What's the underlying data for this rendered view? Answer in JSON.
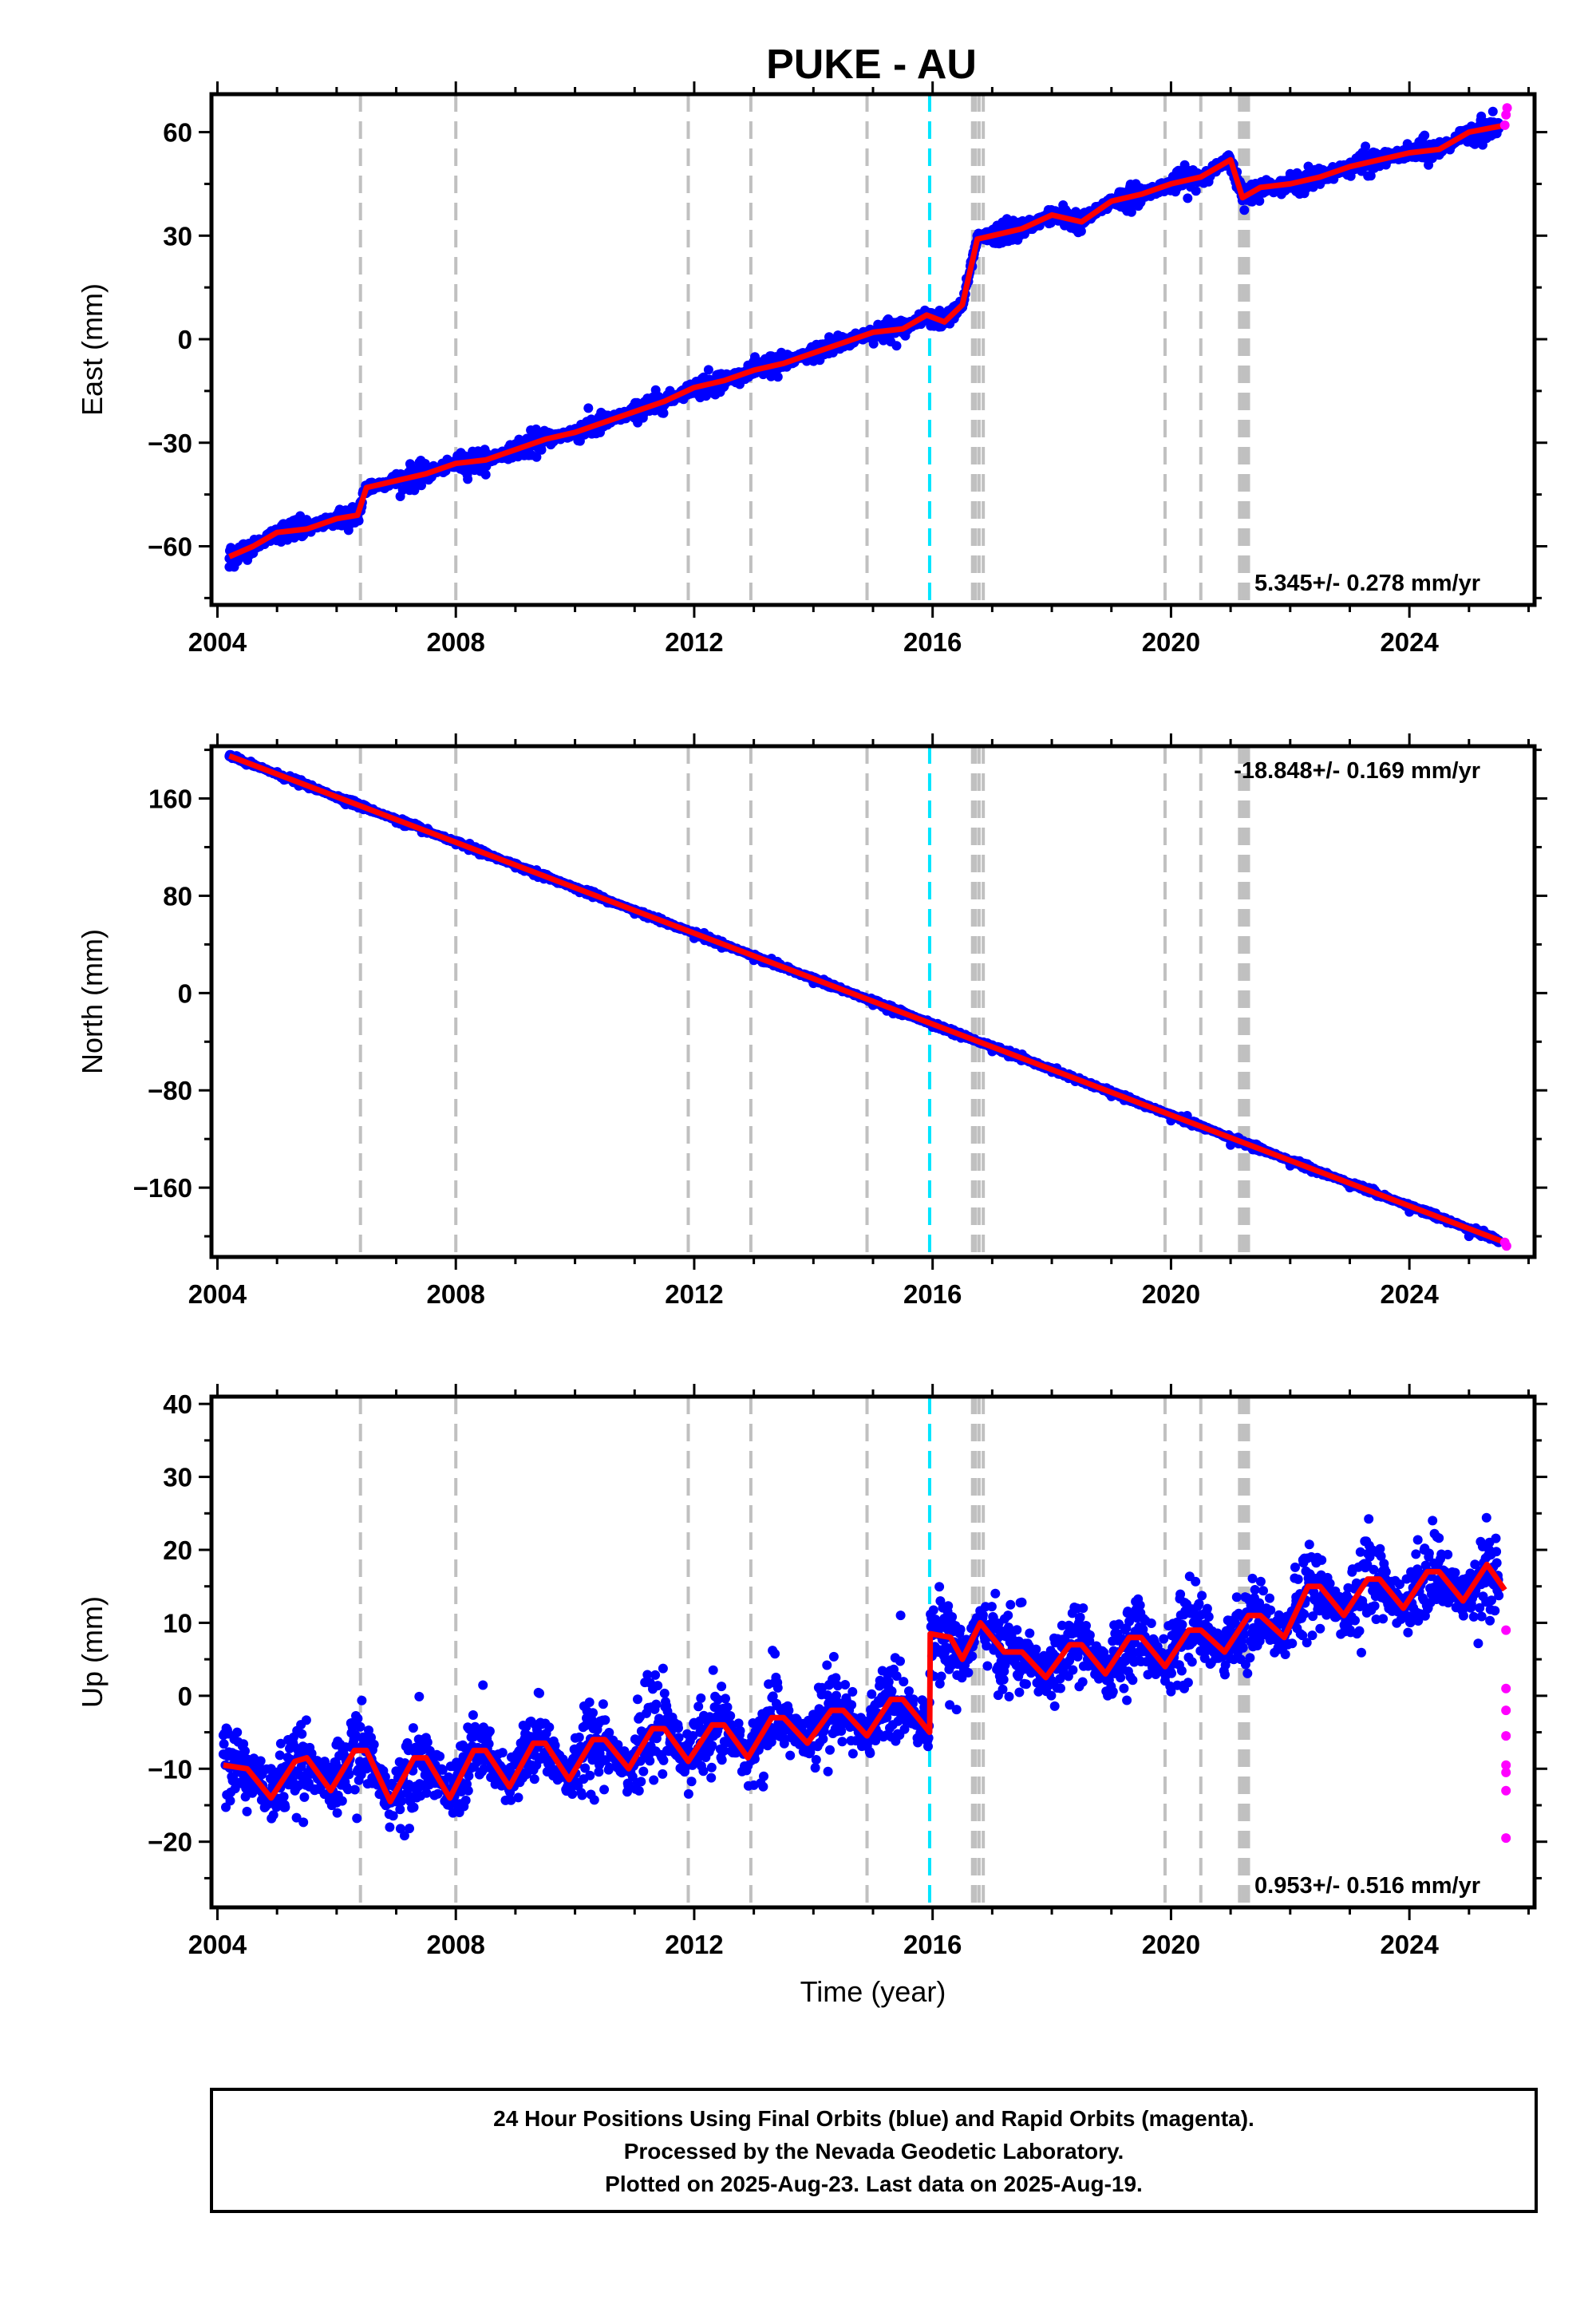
{
  "title": "PUKE - AU",
  "colors": {
    "final_orbits": "#0000ff",
    "rapid_orbits": "#ff00ff",
    "model": "#ff0000",
    "event_line": "#c0c0c0",
    "highlight_event": "#00e5ff"
  },
  "footer": {
    "line1": "24 Hour Positions Using Final Orbits (blue) and Rapid Orbits (magenta).",
    "line2": "Processed by the Nevada Geodetic Laboratory.",
    "line3": "Plotted on 2025-Aug-23. Last data on 2025-Aug-19."
  },
  "chart_data": [
    {
      "type": "scatter",
      "component": "east",
      "title": "",
      "xlabel": "",
      "ylabel": "East (mm)",
      "xlim": [
        2003.9,
        2026.1
      ],
      "ylim": [
        -77,
        71
      ],
      "x_ticks": [
        2004,
        2008,
        2012,
        2016,
        2020,
        2024
      ],
      "y_ticks": [
        -60,
        -30,
        0,
        30,
        60
      ],
      "rate_label": "5.345+/- 0.278 mm/yr",
      "rate_position": "bottom-right",
      "event_lines": [
        2006.4,
        2008.0,
        2011.9,
        2012.95,
        2014.9,
        2016.67,
        2016.72,
        2016.78,
        2016.85,
        2019.9,
        2020.5,
        2021.15,
        2021.2,
        2021.25,
        2021.3
      ],
      "highlight_event": 2015.95,
      "series": [
        {
          "name": "Final Orbits",
          "style": "points",
          "x": [
            2004.2,
            2004.6,
            2005.0,
            2005.5,
            2006.0,
            2006.35,
            2006.5,
            2007.0,
            2007.5,
            2008.0,
            2008.5,
            2009.0,
            2009.5,
            2010.0,
            2010.5,
            2011.0,
            2011.5,
            2012.0,
            2012.5,
            2013.0,
            2013.5,
            2014.0,
            2014.5,
            2015.0,
            2015.5,
            2015.9,
            2016.2,
            2016.5,
            2016.75,
            2017.0,
            2017.5,
            2018.0,
            2018.5,
            2019.0,
            2019.5,
            2020.0,
            2020.5,
            2021.0,
            2021.2,
            2021.5,
            2022.0,
            2022.5,
            2023.0,
            2023.5,
            2024.0,
            2024.5,
            2025.0,
            2025.5
          ],
          "y": [
            -66,
            -62,
            -57,
            -55,
            -51,
            -50,
            -43,
            -40,
            -39,
            -36,
            -35,
            -33,
            -29,
            -27,
            -24,
            -21,
            -18,
            -14,
            -12,
            -10,
            -7,
            -4,
            -1,
            2,
            3,
            7,
            5,
            10,
            29,
            30,
            32,
            35,
            34,
            40,
            42,
            45,
            47,
            51,
            42,
            44,
            45,
            47,
            50,
            52,
            54,
            55,
            60,
            61
          ]
        },
        {
          "name": "Rapid Orbits",
          "style": "points",
          "x": [
            2025.6,
            2025.62,
            2025.64
          ],
          "y": [
            62,
            65,
            67
          ]
        },
        {
          "name": "Model",
          "style": "line",
          "x": [
            2004.2,
            2004.6,
            2005.0,
            2005.5,
            2006.0,
            2006.35,
            2006.5,
            2007.0,
            2007.5,
            2008.0,
            2008.5,
            2009.0,
            2009.5,
            2010.0,
            2010.5,
            2011.0,
            2011.5,
            2012.0,
            2012.5,
            2013.0,
            2013.5,
            2014.0,
            2014.5,
            2015.0,
            2015.5,
            2015.9,
            2016.2,
            2016.5,
            2016.75,
            2017.0,
            2017.5,
            2018.0,
            2018.5,
            2019.0,
            2019.5,
            2020.0,
            2020.5,
            2021.0,
            2021.2,
            2021.5,
            2022.0,
            2022.5,
            2023.0,
            2023.5,
            2024.0,
            2024.5,
            2025.0,
            2025.6
          ],
          "y": [
            -63,
            -60,
            -56,
            -55,
            -52,
            -51,
            -43,
            -41,
            -39,
            -36,
            -35,
            -32,
            -29,
            -27,
            -24,
            -21,
            -18,
            -14,
            -12,
            -9,
            -7,
            -4,
            -1,
            2,
            3,
            7,
            5,
            10,
            29,
            30,
            32,
            36,
            34,
            40,
            42,
            45,
            47,
            52,
            41,
            44,
            45,
            47,
            50,
            52,
            54,
            55,
            60,
            62
          ]
        }
      ]
    },
    {
      "type": "scatter",
      "component": "north",
      "title": "",
      "xlabel": "",
      "ylabel": "North (mm)",
      "xlim": [
        2003.9,
        2026.1
      ],
      "ylim": [
        -217,
        203
      ],
      "x_ticks": [
        2004,
        2008,
        2012,
        2016,
        2020,
        2024
      ],
      "y_ticks": [
        -160,
        -80,
        0,
        80,
        160
      ],
      "rate_label": "-18.848+/- 0.169 mm/yr",
      "rate_position": "top-right",
      "event_lines": [
        2006.4,
        2008.0,
        2011.9,
        2012.95,
        2014.9,
        2016.67,
        2016.72,
        2016.78,
        2016.85,
        2019.9,
        2020.5,
        2021.15,
        2021.2,
        2021.25,
        2021.3
      ],
      "highlight_event": 2015.95,
      "series": [
        {
          "name": "Final Orbits",
          "style": "points",
          "x": [
            2004.2,
            2005.0,
            2006.0,
            2007.0,
            2008.0,
            2009.0,
            2010.0,
            2011.0,
            2012.0,
            2013.0,
            2014.0,
            2015.0,
            2016.0,
            2017.0,
            2018.0,
            2019.0,
            2020.0,
            2021.0,
            2022.0,
            2023.0,
            2024.0,
            2025.0,
            2025.5
          ],
          "y": [
            195,
            180,
            160,
            140,
            122,
            103,
            85,
            65,
            45,
            27,
            8,
            -10,
            -28,
            -48,
            -65,
            -85,
            -105,
            -125,
            -142,
            -160,
            -180,
            -200,
            -205
          ]
        },
        {
          "name": "Rapid Orbits",
          "style": "points",
          "x": [
            2025.6,
            2025.63
          ],
          "y": [
            -205,
            -208
          ]
        },
        {
          "name": "Model",
          "style": "line",
          "x": [
            2004.2,
            2025.6
          ],
          "y": [
            195,
            -205
          ]
        }
      ]
    },
    {
      "type": "scatter",
      "component": "up",
      "title": "",
      "xlabel": "Time (year)",
      "ylabel": "Up (mm)",
      "xlim": [
        2003.9,
        2026.1
      ],
      "ylim": [
        -29,
        41
      ],
      "x_ticks": [
        2004,
        2008,
        2012,
        2016,
        2020,
        2024
      ],
      "y_ticks": [
        -20,
        -10,
        0,
        10,
        20,
        30,
        40
      ],
      "rate_label": "0.953+/- 0.516 mm/yr",
      "rate_position": "bottom-right",
      "event_lines": [
        2006.4,
        2008.0,
        2011.9,
        2012.95,
        2014.9,
        2016.67,
        2016.72,
        2016.78,
        2016.85,
        2019.9,
        2020.5,
        2021.15,
        2021.2,
        2021.25,
        2021.3
      ],
      "highlight_event": 2015.95,
      "series": [
        {
          "name": "Final Orbits",
          "style": "points",
          "x": [
            2004.1,
            2004.4,
            2004.9,
            2005.3,
            2005.8,
            2006.1,
            2006.6,
            2007.1,
            2007.6,
            2008.1,
            2008.6,
            2009.1,
            2009.6,
            2010.1,
            2010.6,
            2011.1,
            2011.6,
            2012.1,
            2012.6,
            2013.1,
            2013.6,
            2014.1,
            2014.6,
            2015.1,
            2015.6,
            2016.1,
            2016.6,
            2017.1,
            2017.6,
            2018.1,
            2018.6,
            2019.1,
            2019.6,
            2020.1,
            2020.6,
            2021.1,
            2021.6,
            2022.1,
            2022.6,
            2023.1,
            2023.6,
            2024.1,
            2024.6,
            2025.1,
            2025.5
          ],
          "y": [
            -8,
            -12,
            -10,
            -13,
            -9,
            -10,
            -12,
            -10,
            -11,
            -9,
            -10,
            -8,
            -9,
            -7,
            -8,
            -6,
            -6,
            -5,
            -5,
            -4,
            -4,
            -3,
            -2,
            -1,
            -2,
            6,
            5,
            4,
            4,
            5,
            5,
            6,
            6,
            8,
            8,
            11,
            12,
            13,
            14,
            15,
            16,
            16,
            17,
            18,
            15
          ]
        },
        {
          "name": "Rapid Orbits",
          "style": "points",
          "x": [
            2025.62,
            2025.62,
            2025.62,
            2025.62,
            2025.62,
            2025.62,
            2025.62,
            2025.62
          ],
          "y": [
            9,
            1,
            -2,
            -5.5,
            -9.5,
            -10.5,
            -13,
            -19.5
          ]
        },
        {
          "name": "Model",
          "style": "line",
          "x": [
            2004.1,
            2004.5,
            2004.9,
            2005.3,
            2005.5,
            2005.9,
            2006.3,
            2006.5,
            2006.9,
            2007.3,
            2007.5,
            2007.9,
            2008.3,
            2008.5,
            2008.9,
            2009.3,
            2009.5,
            2009.9,
            2010.3,
            2010.5,
            2010.9,
            2011.3,
            2011.5,
            2011.9,
            2012.3,
            2012.5,
            2012.9,
            2013.3,
            2013.5,
            2013.9,
            2014.3,
            2014.5,
            2014.9,
            2015.3,
            2015.5,
            2015.95,
            2015.96,
            2016.3,
            2016.5,
            2016.8,
            2017.2,
            2017.5,
            2017.9,
            2018.3,
            2018.5,
            2018.9,
            2019.3,
            2019.5,
            2019.9,
            2020.3,
            2020.5,
            2020.9,
            2021.3,
            2021.5,
            2021.9,
            2022.3,
            2022.5,
            2022.9,
            2023.3,
            2023.5,
            2023.9,
            2024.3,
            2024.5,
            2024.9,
            2025.3,
            2025.6
          ],
          "y": [
            -9.5,
            -10,
            -14,
            -9,
            -8.5,
            -13,
            -7.5,
            -7.5,
            -14.5,
            -8.5,
            -8.5,
            -14,
            -7.5,
            -7.5,
            -12.5,
            -6.5,
            -6.5,
            -11.5,
            -6,
            -6,
            -10,
            -4.5,
            -4.5,
            -9,
            -4,
            -4,
            -8.5,
            -3,
            -3,
            -6.5,
            -2,
            -2,
            -5.5,
            -0.5,
            -0.5,
            -5,
            8.5,
            8,
            5,
            10,
            6,
            6,
            2.5,
            7,
            7,
            3,
            8,
            8,
            4,
            9,
            9,
            6,
            11,
            11,
            8,
            15,
            15,
            11,
            16,
            16,
            12,
            17,
            17,
            13,
            18,
            14.5
          ]
        }
      ]
    }
  ]
}
